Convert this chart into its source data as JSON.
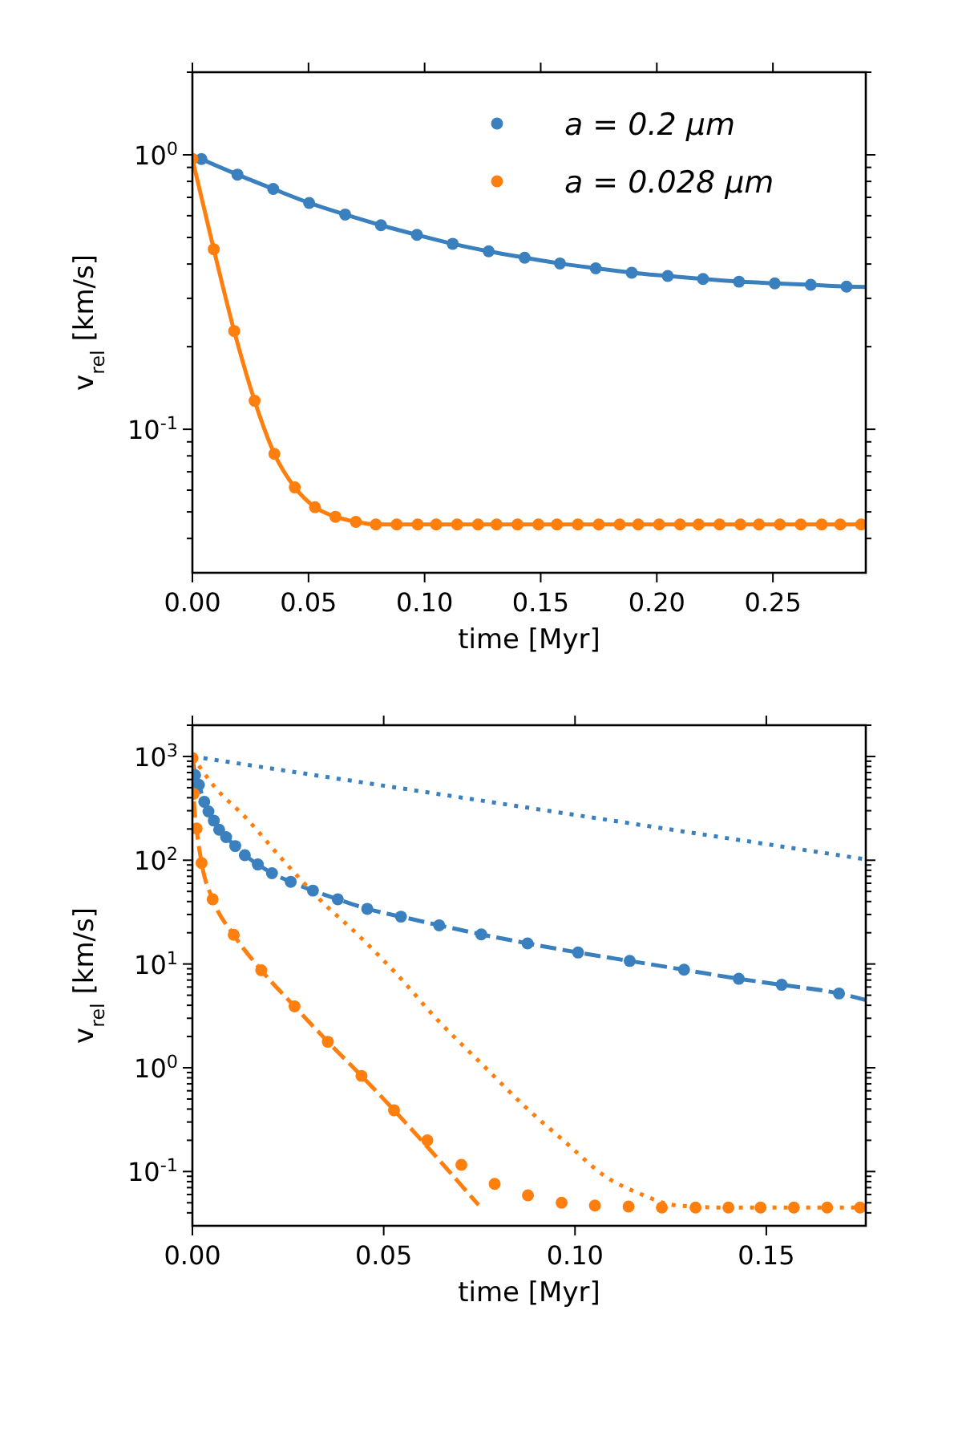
{
  "chart_data": [
    {
      "type": "line",
      "xlabel": "time [Myr]",
      "ylabel": "v$_{rel}$ [km/s]",
      "log": "y",
      "legend": "top right",
      "grid": false,
      "xlim": [
        0,
        0.29
      ],
      "xticks": [
        {
          "value": 0,
          "label": "0.00"
        },
        {
          "value": 0.05,
          "label": "0.05"
        },
        {
          "value": 0.1,
          "label": "0.10"
        },
        {
          "value": 0.15,
          "label": "0.15"
        },
        {
          "value": 0.2,
          "label": "0.20"
        },
        {
          "value": 0.25,
          "label": "0.25"
        }
      ],
      "ylim": [
        0.03,
        2
      ],
      "yticks": [
        {
          "value": 0.1,
          "label": "10$^{-1}$"
        },
        {
          "value": 1,
          "label": "10$^{0}$"
        },
        {
          "value": 0.04,
          "label": null
        },
        {
          "value": 0.05,
          "label": null
        },
        {
          "value": 0.06,
          "label": null
        },
        {
          "value": 0.07,
          "label": null
        },
        {
          "value": 0.08,
          "label": null
        },
        {
          "value": 0.09,
          "label": null
        },
        {
          "value": 0.2,
          "label": null
        },
        {
          "value": 0.3,
          "label": null
        },
        {
          "value": 0.4,
          "label": null
        },
        {
          "value": 0.5,
          "label": null
        },
        {
          "value": 0.6,
          "label": null
        },
        {
          "value": 0.7,
          "label": null
        },
        {
          "value": 0.8,
          "label": null
        },
        {
          "value": 0.9,
          "label": null
        },
        {
          "value": 2,
          "label": null
        }
      ],
      "series": [
        {
          "type": "line",
          "color": "#3a80bf",
          "line_style": "solid",
          "x": [
            0,
            0.0039,
            0.0194,
            0.0348,
            0.0503,
            0.0658,
            0.0812,
            0.0967,
            0.1121,
            0.1276,
            0.1431,
            0.1583,
            0.1737,
            0.1892,
            0.2047,
            0.2199,
            0.2354,
            0.2508,
            0.2663,
            0.2817,
            0.29
          ],
          "values": [
            1.0,
            0.965,
            0.847,
            0.751,
            0.668,
            0.606,
            0.554,
            0.511,
            0.474,
            0.445,
            0.422,
            0.402,
            0.386,
            0.372,
            0.362,
            0.353,
            0.345,
            0.34,
            0.336,
            0.331,
            0.33
          ]
        },
        {
          "type": "line",
          "color": "#ff7f0e",
          "line_style": "solid",
          "x": [
            0,
            0.0092,
            0.018,
            0.0268,
            0.0353,
            0.0441,
            0.0528,
            0.0616,
            0.0704,
            0.079,
            0.29
          ],
          "values": [
            0.965,
            0.453,
            0.228,
            0.127,
            0.0814,
            0.0614,
            0.052,
            0.048,
            0.046,
            0.045,
            0.045
          ]
        },
        {
          "type": "scatter",
          "name": "a = 0.2 μm",
          "color": "#3a80bf",
          "marker": "circle",
          "x": [
            0.0039,
            0.0194,
            0.0348,
            0.0503,
            0.0658,
            0.0812,
            0.0967,
            0.1121,
            0.1276,
            0.1431,
            0.1583,
            0.1737,
            0.1892,
            0.2047,
            0.2199,
            0.2354,
            0.2508,
            0.2663,
            0.2817
          ],
          "values": [
            0.965,
            0.847,
            0.751,
            0.668,
            0.606,
            0.554,
            0.511,
            0.474,
            0.445,
            0.422,
            0.402,
            0.386,
            0.372,
            0.362,
            0.353,
            0.345,
            0.34,
            0.336,
            0.331
          ]
        },
        {
          "type": "scatter",
          "name": "a = 0.028 μm",
          "color": "#ff7f0e",
          "marker": "circle",
          "x": [
            0,
            0.0092,
            0.018,
            0.0268,
            0.0353,
            0.0441,
            0.0528,
            0.0616,
            0.0704,
            0.079,
            0.088,
            0.097,
            0.105,
            0.114,
            0.123,
            0.131,
            0.14,
            0.149,
            0.157,
            0.166,
            0.175,
            0.184,
            0.192,
            0.201,
            0.21,
            0.218,
            0.227,
            0.236,
            0.244,
            0.253,
            0.262,
            0.271,
            0.279,
            0.288
          ],
          "values": [
            0.965,
            0.453,
            0.228,
            0.127,
            0.0814,
            0.0614,
            0.052,
            0.048,
            0.046,
            0.045,
            0.045,
            0.045,
            0.045,
            0.045,
            0.045,
            0.045,
            0.045,
            0.045,
            0.045,
            0.045,
            0.045,
            0.045,
            0.045,
            0.045,
            0.045,
            0.045,
            0.045,
            0.045,
            0.045,
            0.045,
            0.045,
            0.045,
            0.045,
            0.045
          ]
        }
      ]
    },
    {
      "type": "line",
      "xlabel": "time [Myr]",
      "ylabel": "v$_{rel}$ [km/s]",
      "log": "y",
      "grid": false,
      "xlim": [
        0,
        0.176
      ],
      "xticks": [
        {
          "value": 0,
          "label": "0.00"
        },
        {
          "value": 0.05,
          "label": "0.05"
        },
        {
          "value": 0.1,
          "label": "0.10"
        },
        {
          "value": 0.15,
          "label": "0.15"
        }
      ],
      "ylim": [
        0.03,
        2000
      ],
      "yticks": [
        {
          "value": 0.1,
          "label": "10$^{-1}$"
        },
        {
          "value": 1,
          "label": "10$^{0}$"
        },
        {
          "value": 10,
          "label": "10$^{1}$"
        },
        {
          "value": 100,
          "label": "10$^{2}$"
        },
        {
          "value": 1000,
          "label": "10$^{3}$"
        },
        {
          "value": 0.04,
          "label": null
        },
        {
          "value": 0.05,
          "label": null
        },
        {
          "value": 0.06,
          "label": null
        },
        {
          "value": 0.07,
          "label": null
        },
        {
          "value": 0.08,
          "label": null
        },
        {
          "value": 0.09,
          "label": null
        },
        {
          "value": 0.2,
          "label": null
        },
        {
          "value": 0.3,
          "label": null
        },
        {
          "value": 0.4,
          "label": null
        },
        {
          "value": 0.5,
          "label": null
        },
        {
          "value": 0.6,
          "label": null
        },
        {
          "value": 0.7,
          "label": null
        },
        {
          "value": 0.8,
          "label": null
        },
        {
          "value": 0.9,
          "label": null
        },
        {
          "value": 2,
          "label": null
        },
        {
          "value": 3,
          "label": null
        },
        {
          "value": 4,
          "label": null
        },
        {
          "value": 5,
          "label": null
        },
        {
          "value": 6,
          "label": null
        },
        {
          "value": 7,
          "label": null
        },
        {
          "value": 8,
          "label": null
        },
        {
          "value": 9,
          "label": null
        },
        {
          "value": 20,
          "label": null
        },
        {
          "value": 30,
          "label": null
        },
        {
          "value": 40,
          "label": null
        },
        {
          "value": 50,
          "label": null
        },
        {
          "value": 60,
          "label": null
        },
        {
          "value": 70,
          "label": null
        },
        {
          "value": 80,
          "label": null
        },
        {
          "value": 90,
          "label": null
        },
        {
          "value": 200,
          "label": null
        },
        {
          "value": 300,
          "label": null
        },
        {
          "value": 400,
          "label": null
        },
        {
          "value": 500,
          "label": null
        },
        {
          "value": 600,
          "label": null
        },
        {
          "value": 700,
          "label": null
        },
        {
          "value": 800,
          "label": null
        },
        {
          "value": 900,
          "label": null
        },
        {
          "value": 2000,
          "label": null
        }
      ],
      "series": [
        {
          "type": "line",
          "color": "#3a80bf",
          "line_style": "dotted",
          "x": [
            0,
            0.176
          ],
          "values": [
            1000,
            102
          ]
        },
        {
          "type": "line",
          "color": "#3a80bf",
          "line_style": "dashed",
          "x": [
            0,
            0.0007,
            0.0017,
            0.0031,
            0.0042,
            0.0056,
            0.007,
            0.0088,
            0.0112,
            0.0137,
            0.0171,
            0.0208,
            0.0257,
            0.0315,
            0.038,
            0.0457,
            0.0545,
            0.0645,
            0.0755,
            0.0876,
            0.1008,
            0.1143,
            0.1285,
            0.1428,
            0.154,
            0.169,
            0.176
          ],
          "values": [
            1000,
            660,
            533,
            366,
            295,
            241,
            197,
            167,
            137,
            112,
            91,
            75,
            62,
            51,
            42,
            34,
            28.6,
            23.6,
            19.3,
            15.8,
            12.9,
            10.7,
            8.8,
            7.2,
            6.3,
            5.2,
            4.5
          ]
        },
        {
          "type": "line",
          "color": "#ff7f0e",
          "line_style": "dotted",
          "x": [
            0,
            0.0056,
            0.014,
            0.0238,
            0.0336,
            0.0434,
            0.0531,
            0.0643,
            0.0755,
            0.0867,
            0.0979,
            0.1077,
            0.1175,
            0.1259,
            0.1385,
            0.176
          ],
          "values": [
            1000,
            521,
            256,
            99,
            40.7,
            18.9,
            8.2,
            2.83,
            1.1,
            0.43,
            0.186,
            0.091,
            0.06,
            0.0475,
            0.045,
            0.045
          ]
        },
        {
          "type": "line",
          "color": "#ff7f0e",
          "line_style": "dashed",
          "x": [
            0,
            0.0003,
            0.0011,
            0.0024,
            0.0053,
            0.0108,
            0.018,
            0.0267,
            0.0354,
            0.0442,
            0.0527,
            0.0748
          ],
          "values": [
            1000,
            436,
            202,
            94,
            42,
            19.1,
            8.7,
            3.9,
            1.78,
            0.835,
            0.39,
            0.0475
          ]
        },
        {
          "type": "scatter",
          "color": "#3a80bf",
          "marker": "circle",
          "x": [
            0.0007,
            0.0017,
            0.0031,
            0.0042,
            0.0056,
            0.007,
            0.0088,
            0.0112,
            0.0137,
            0.0171,
            0.0208,
            0.0257,
            0.0315,
            0.038,
            0.0457,
            0.0545,
            0.0645,
            0.0755,
            0.0876,
            0.1008,
            0.1143,
            0.1285,
            0.1428,
            0.154,
            0.169
          ],
          "values": [
            660,
            533,
            366,
            295,
            241,
            197,
            167,
            137,
            112,
            91,
            75,
            62,
            51,
            42,
            34,
            28.6,
            23.6,
            19.3,
            15.8,
            12.9,
            10.7,
            8.8,
            7.2,
            6.3,
            5.2
          ]
        },
        {
          "type": "scatter",
          "color": "#ff7f0e",
          "marker": "circle",
          "x": [
            0,
            0.0003,
            0.0011,
            0.0024,
            0.0053,
            0.0108,
            0.018,
            0.0267,
            0.0354,
            0.0442,
            0.0527,
            0.0614,
            0.0703,
            0.079,
            0.0877,
            0.0965,
            0.1052,
            0.114,
            0.1227,
            0.1315,
            0.1401,
            0.1485,
            0.1572,
            0.1659,
            0.1745
          ],
          "values": [
            966,
            436,
            202,
            94,
            42,
            19.1,
            8.7,
            3.9,
            1.78,
            0.835,
            0.39,
            0.2,
            0.116,
            0.076,
            0.059,
            0.05,
            0.047,
            0.046,
            0.045,
            0.045,
            0.045,
            0.045,
            0.045,
            0.045,
            0.045
          ]
        }
      ]
    }
  ]
}
